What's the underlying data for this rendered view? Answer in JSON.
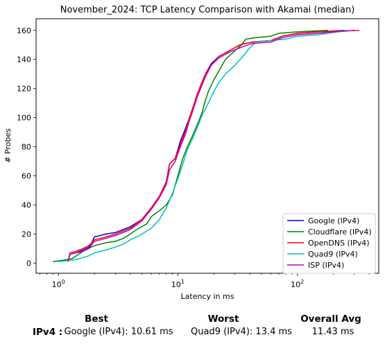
{
  "chart_data": {
    "type": "line",
    "title": "November_2024: TCP Latency Comparison with Akamai (median)",
    "xlabel": "Latency in ms",
    "ylabel": "# Probes",
    "xscale": "log",
    "xlim": [
      0.65,
      480
    ],
    "ylim": [
      -7,
      168
    ],
    "x_ticks": [
      1,
      10,
      100
    ],
    "x_tick_labels": [
      "10^0",
      "10^1",
      "10^2"
    ],
    "y_ticks": [
      0,
      20,
      40,
      60,
      80,
      100,
      120,
      140,
      160
    ],
    "grid": false,
    "legend_position": "bottom-right",
    "series": [
      {
        "name": "Google (IPv4)",
        "color": "#0000cc",
        "points": [
          [
            1.2,
            1
          ],
          [
            1.25,
            6
          ],
          [
            1.4,
            7
          ],
          [
            1.6,
            9
          ],
          [
            1.8,
            11
          ],
          [
            1.9,
            14
          ],
          [
            2.0,
            18
          ],
          [
            2.5,
            20
          ],
          [
            3.0,
            21
          ],
          [
            4.0,
            25
          ],
          [
            5.0,
            30
          ],
          [
            6.0,
            38
          ],
          [
            7.0,
            46
          ],
          [
            8.0,
            56
          ],
          [
            8.5,
            68
          ],
          [
            9.5,
            72
          ],
          [
            10.5,
            84
          ],
          [
            11.5,
            92
          ],
          [
            12.5,
            100
          ],
          [
            13.5,
            108
          ],
          [
            14.5,
            116
          ],
          [
            15.5,
            122
          ],
          [
            17.0,
            130
          ],
          [
            19.0,
            137
          ],
          [
            22.0,
            142
          ],
          [
            27.0,
            146
          ],
          [
            33.0,
            150
          ],
          [
            42.0,
            152
          ],
          [
            60.0,
            153
          ],
          [
            75.0,
            156
          ],
          [
            100.0,
            158
          ],
          [
            150.0,
            159
          ],
          [
            250.0,
            160
          ]
        ]
      },
      {
        "name": "Cloudflare (IPv4)",
        "color": "#008000",
        "points": [
          [
            0.9,
            1
          ],
          [
            1.1,
            2
          ],
          [
            1.3,
            3
          ],
          [
            1.6,
            8
          ],
          [
            2.0,
            12
          ],
          [
            2.5,
            14
          ],
          [
            3.0,
            15
          ],
          [
            3.5,
            17
          ],
          [
            4.0,
            20
          ],
          [
            4.5,
            23
          ],
          [
            5.0,
            25
          ],
          [
            5.5,
            27
          ],
          [
            6.0,
            32
          ],
          [
            7.0,
            36
          ],
          [
            8.0,
            40
          ],
          [
            9.0,
            47
          ],
          [
            10.0,
            60
          ],
          [
            11.0,
            72
          ],
          [
            12.0,
            80
          ],
          [
            13.0,
            86
          ],
          [
            14.0,
            92
          ],
          [
            15.0,
            98
          ],
          [
            16.0,
            104
          ],
          [
            17.0,
            112
          ],
          [
            18.0,
            118
          ],
          [
            20.0,
            126
          ],
          [
            22.0,
            132
          ],
          [
            25.0,
            140
          ],
          [
            30.0,
            146
          ],
          [
            34.0,
            150
          ],
          [
            37.0,
            154
          ],
          [
            45.0,
            155
          ],
          [
            60.0,
            156
          ],
          [
            70.0,
            158
          ],
          [
            100.0,
            159
          ],
          [
            180.0,
            160
          ]
        ]
      },
      {
        "name": "OpenDNS (IPv4)",
        "color": "#ff0000",
        "points": [
          [
            1.2,
            1
          ],
          [
            1.25,
            7
          ],
          [
            1.4,
            8
          ],
          [
            1.6,
            10
          ],
          [
            1.8,
            12
          ],
          [
            2.0,
            16
          ],
          [
            2.5,
            18
          ],
          [
            3.0,
            20
          ],
          [
            4.0,
            24
          ],
          [
            5.0,
            30
          ],
          [
            6.0,
            38
          ],
          [
            7.0,
            46
          ],
          [
            8.0,
            56
          ],
          [
            8.5,
            68
          ],
          [
            9.5,
            72
          ],
          [
            10.5,
            82
          ],
          [
            11.5,
            90
          ],
          [
            12.5,
            100
          ],
          [
            13.5,
            108
          ],
          [
            14.5,
            116
          ],
          [
            15.5,
            122
          ],
          [
            17.0,
            130
          ],
          [
            19.0,
            136
          ],
          [
            22.0,
            142
          ],
          [
            27.0,
            146
          ],
          [
            33.0,
            150
          ],
          [
            42.0,
            152
          ],
          [
            60.0,
            153
          ],
          [
            75.0,
            156
          ],
          [
            100.0,
            158
          ],
          [
            150.0,
            159
          ],
          [
            330.0,
            160
          ]
        ]
      },
      {
        "name": "Quad9 (IPv4)",
        "color": "#00bfbf",
        "points": [
          [
            1.0,
            1
          ],
          [
            1.3,
            2
          ],
          [
            1.5,
            3
          ],
          [
            1.8,
            5
          ],
          [
            2.0,
            7
          ],
          [
            2.5,
            9
          ],
          [
            3.0,
            11
          ],
          [
            3.5,
            13
          ],
          [
            4.0,
            16
          ],
          [
            4.5,
            18
          ],
          [
            5.0,
            20
          ],
          [
            6.0,
            24
          ],
          [
            7.0,
            30
          ],
          [
            8.0,
            38
          ],
          [
            9.0,
            48
          ],
          [
            10.0,
            58
          ],
          [
            11.0,
            68
          ],
          [
            12.0,
            78
          ],
          [
            13.0,
            84
          ],
          [
            14.0,
            90
          ],
          [
            15.0,
            96
          ],
          [
            16.0,
            102
          ],
          [
            18.0,
            110
          ],
          [
            20.0,
            118
          ],
          [
            22.0,
            124
          ],
          [
            25.0,
            130
          ],
          [
            30.0,
            136
          ],
          [
            35.0,
            142
          ],
          [
            40.0,
            148
          ],
          [
            45.0,
            152
          ],
          [
            60.0,
            153
          ],
          [
            80.0,
            154
          ],
          [
            100.0,
            156
          ],
          [
            150.0,
            157
          ],
          [
            260.0,
            160
          ]
        ]
      },
      {
        "name": "ISP (IPv4)",
        "color": "#bf00bf",
        "points": [
          [
            1.2,
            1
          ],
          [
            1.25,
            6
          ],
          [
            1.4,
            7
          ],
          [
            1.6,
            8
          ],
          [
            1.8,
            10
          ],
          [
            2.0,
            15
          ],
          [
            2.5,
            17
          ],
          [
            3.0,
            19
          ],
          [
            4.0,
            23
          ],
          [
            5.0,
            29
          ],
          [
            6.0,
            37
          ],
          [
            7.0,
            45
          ],
          [
            8.0,
            54
          ],
          [
            8.5,
            64
          ],
          [
            9.5,
            70
          ],
          [
            10.5,
            80
          ],
          [
            11.5,
            88
          ],
          [
            12.5,
            98
          ],
          [
            13.5,
            106
          ],
          [
            14.5,
            114
          ],
          [
            15.5,
            120
          ],
          [
            17.0,
            128
          ],
          [
            19.0,
            136
          ],
          [
            22.0,
            141
          ],
          [
            27.0,
            145
          ],
          [
            33.0,
            148
          ],
          [
            42.0,
            151
          ],
          [
            60.0,
            152
          ],
          [
            75.0,
            155
          ],
          [
            100.0,
            157
          ],
          [
            150.0,
            158
          ],
          [
            300.0,
            160
          ]
        ]
      }
    ]
  },
  "summary": {
    "best_header": "Best",
    "worst_header": "Worst",
    "avg_header": "Overall Avg",
    "row_label": "IPv4 :",
    "best_value": "Google (IPv4): 10.61 ms",
    "worst_value": "Quad9 (IPv4): 13.4 ms",
    "avg_value": "11.43 ms"
  }
}
